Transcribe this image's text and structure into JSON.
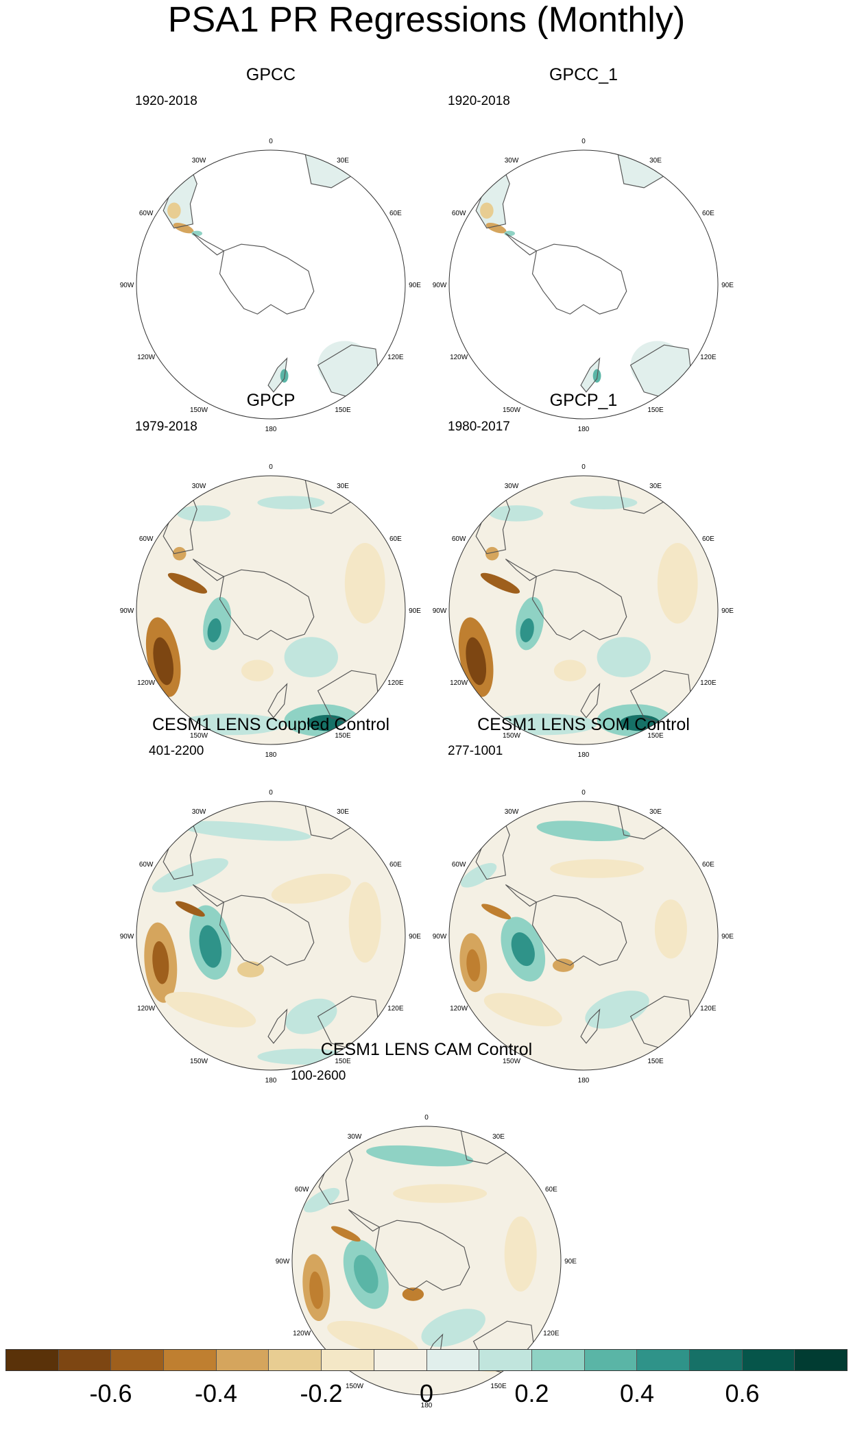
{
  "title": "PSA1 PR Regressions (Monthly)",
  "lon_labels": [
    "0",
    "30E",
    "60E",
    "90E",
    "120E",
    "150E",
    "180",
    "150W",
    "120W",
    "90W",
    "60W",
    "30W"
  ],
  "panels": [
    {
      "id": "gpcc",
      "title": "GPCC",
      "years": "1920-2018",
      "coverage": "land"
    },
    {
      "id": "gpcc1",
      "title": "GPCC_1",
      "years": "1920-2018",
      "coverage": "land"
    },
    {
      "id": "gpcp",
      "title": "GPCP",
      "years": "1979-2018",
      "coverage": "full"
    },
    {
      "id": "gpcp1",
      "title": "GPCP_1",
      "years": "1980-2017",
      "coverage": "full"
    },
    {
      "id": "cpl",
      "title": "CESM1 LENS Coupled Control",
      "years": "401-2200",
      "coverage": "full"
    },
    {
      "id": "som",
      "title": "CESM1 LENS SOM Control",
      "years": "277-1001",
      "coverage": "full"
    },
    {
      "id": "cam",
      "title": "CESM1 LENS CAM Control",
      "years": "100-2600",
      "coverage": "full"
    }
  ],
  "colorbar": {
    "colors": [
      "#5a3209",
      "#7d4612",
      "#9e5f1c",
      "#bf7f30",
      "#d5a55d",
      "#e8cd92",
      "#f4e7c6",
      "#f4f0e4",
      "#e1efec",
      "#c1e5dd",
      "#8fd2c4",
      "#5ab5a6",
      "#2f9389",
      "#167167",
      "#06554a",
      "#013c32"
    ],
    "labels": [
      "-0.6",
      "-0.4",
      "-0.2",
      "0",
      "0.2",
      "0.4",
      "0.6"
    ],
    "label_values": [
      -0.6,
      -0.4,
      -0.2,
      0,
      0.2,
      0.4,
      0.6
    ],
    "range": [
      -0.8,
      0.8
    ]
  }
}
